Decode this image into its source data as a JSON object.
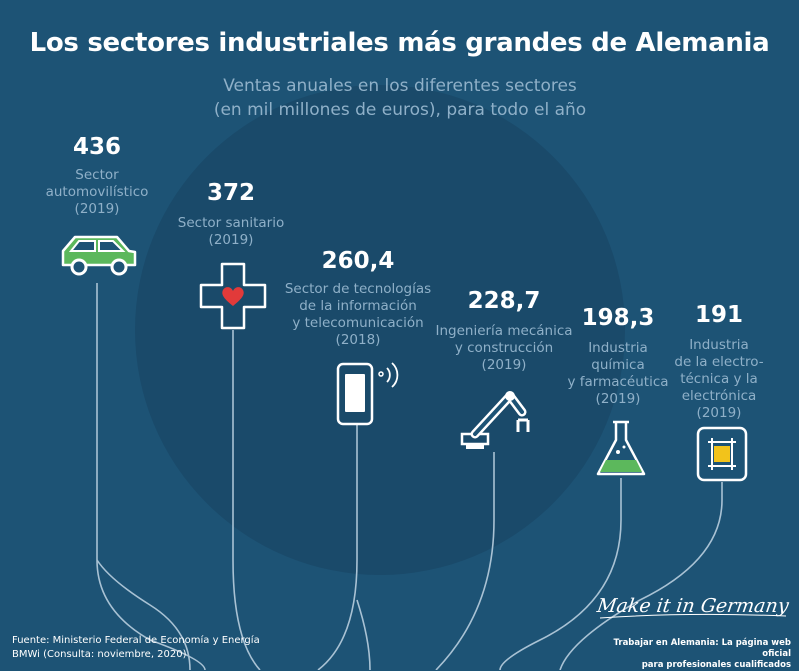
{
  "header": {
    "title": "Los sectores industriales más grandes de Alemania",
    "subtitle": "Ventas anuales en los diferentes sectores\n(en mil millones de euros), para todo el año"
  },
  "chart_data": {
    "type": "bar",
    "title": "Los sectores industriales más grandes de Alemania",
    "subtitle": "Ventas anuales en los diferentes sectores (en mil millones de euros), para todo el año",
    "categories": [
      "Sector automovilístico (2019)",
      "Sector sanitario (2019)",
      "Sector de tecnologías de la información y telecomunicación (2018)",
      "Ingeniería mecánica y construcción (2019)",
      "Industria química y farmacéutica (2019)",
      "Industria de la electrotécnica y la electrónica (2019)"
    ],
    "values": [
      436,
      372,
      260.4,
      228.7,
      198.3,
      191
    ],
    "display_values": [
      "436",
      "372",
      "260,4",
      "228,7",
      "198,3",
      "191"
    ],
    "labels": [
      "Sector\nautomovilístico\n(2019)",
      "Sector sanitario\n(2019)",
      "Sector de tecnologías\nde la información\ny telecomunicación\n(2018)",
      "Ingeniería mecánica\ny construcción\n(2019)",
      "Industria\nquímica\ny farmacéutica\n(2019)",
      "Industria\nde la electro-\ntécnica y la\nelectrónica\n(2019)"
    ],
    "icons": [
      "car-icon",
      "health-cross-icon",
      "smartphone-icon",
      "robot-arm-icon",
      "flask-icon",
      "chip-card-icon"
    ],
    "xlabel": "",
    "ylabel": ""
  },
  "colors": {
    "background": "#1d5375",
    "circle": "#1a4a6a",
    "line": "#a9c2d4",
    "accent_green": "#5cb85c",
    "accent_red": "#e23a3a",
    "accent_yellow": "#f2c31b",
    "label": "#8fb0c8"
  },
  "footer": {
    "source": "Fuente: Ministerio Federal de Economía y Energía\nBMWi (Consulta: noviembre, 2020)",
    "brand": "Make it in Germany",
    "brand_caption": "Trabajar en Alemania: La página web oficial\npara profesionales cualificados"
  }
}
